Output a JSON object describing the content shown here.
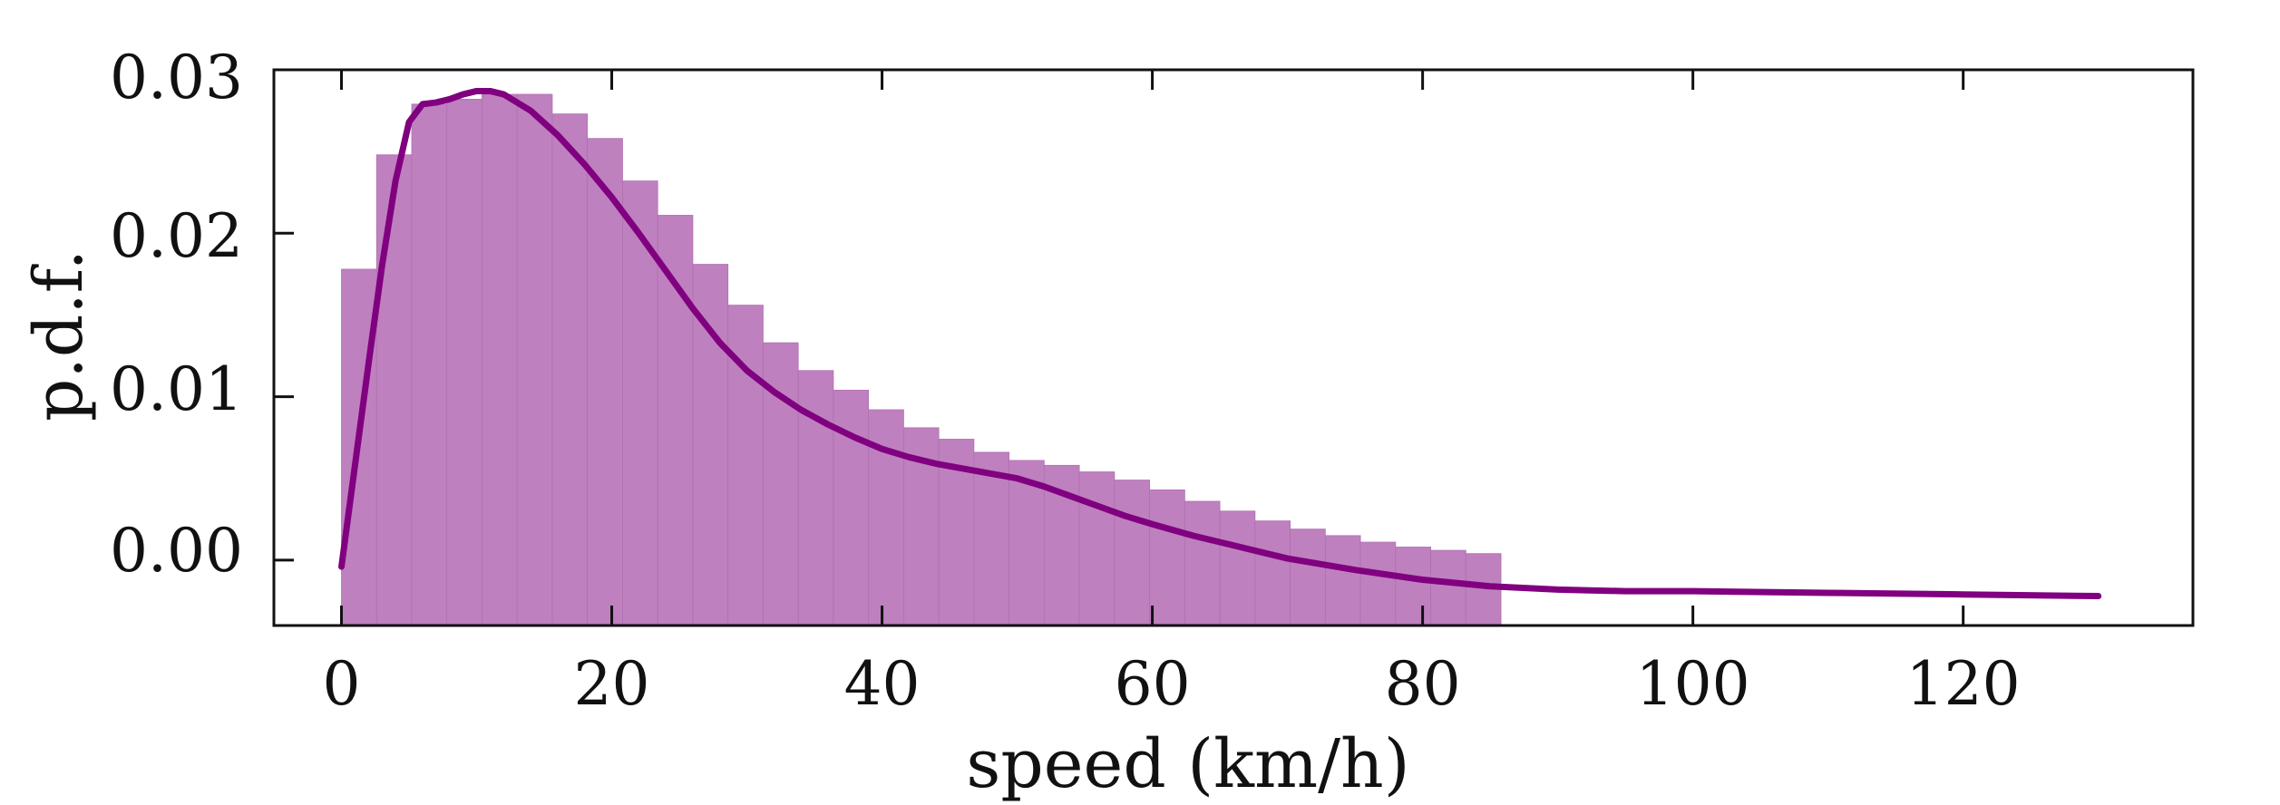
{
  "chart_data": {
    "type": "bar",
    "title": "",
    "xlabel": "speed (km/h)",
    "ylabel": "p.d.f.",
    "xlim": [
      -5,
      137
    ],
    "ylim": [
      -0.004,
      0.03
    ],
    "xticks": [
      0,
      20,
      40,
      60,
      80,
      100,
      120
    ],
    "xtick_labels": [
      "0",
      "20",
      "40",
      "60",
      "80",
      "100",
      "120"
    ],
    "yticks": [
      0.0,
      0.01,
      0.02,
      0.03
    ],
    "ytick_labels": [
      "0.00",
      "0.01",
      "0.02",
      "0.03"
    ],
    "grid": false,
    "legend": "none",
    "bar_color": "#bf80bf",
    "line_color": "#800080",
    "histogram": {
      "bin_width": 2.6,
      "bin_start": 0,
      "values": [
        0.0178,
        0.0248,
        0.0279,
        0.0282,
        0.0285,
        0.0285,
        0.0273,
        0.0258,
        0.0232,
        0.0211,
        0.0181,
        0.0156,
        0.0133,
        0.0116,
        0.0104,
        0.0092,
        0.0081,
        0.0074,
        0.0066,
        0.0061,
        0.0058,
        0.0054,
        0.0049,
        0.0043,
        0.0036,
        0.003,
        0.0024,
        0.0019,
        0.0015,
        0.0011,
        0.0008,
        0.0006,
        0.0004
      ]
    },
    "kde": {
      "x": [
        0,
        1,
        2,
        3,
        4,
        5,
        6,
        7,
        8,
        9,
        10,
        11,
        12,
        13,
        14,
        16,
        18,
        20,
        22,
        24,
        26,
        28,
        30,
        32,
        34,
        36,
        38,
        40,
        42,
        44,
        46,
        48,
        50,
        52,
        54,
        56,
        58,
        60,
        63,
        66,
        70,
        75,
        80,
        85,
        90,
        95,
        100,
        110,
        120,
        130
      ],
      "y": [
        -0.0004,
        0.0058,
        0.012,
        0.018,
        0.0232,
        0.0268,
        0.0279,
        0.028,
        0.0282,
        0.0285,
        0.0287,
        0.0287,
        0.0285,
        0.028,
        0.0275,
        0.026,
        0.0242,
        0.0222,
        0.02,
        0.0177,
        0.0154,
        0.0133,
        0.0116,
        0.0103,
        0.0092,
        0.0083,
        0.0075,
        0.0068,
        0.0063,
        0.0059,
        0.0056,
        0.0053,
        0.005,
        0.0045,
        0.0039,
        0.0033,
        0.0027,
        0.0022,
        0.0015,
        0.0009,
        0.0001,
        -0.0006,
        -0.0012,
        -0.0016,
        -0.0018,
        -0.0019,
        -0.0019,
        -0.002,
        -0.0021,
        -0.0022
      ]
    }
  }
}
